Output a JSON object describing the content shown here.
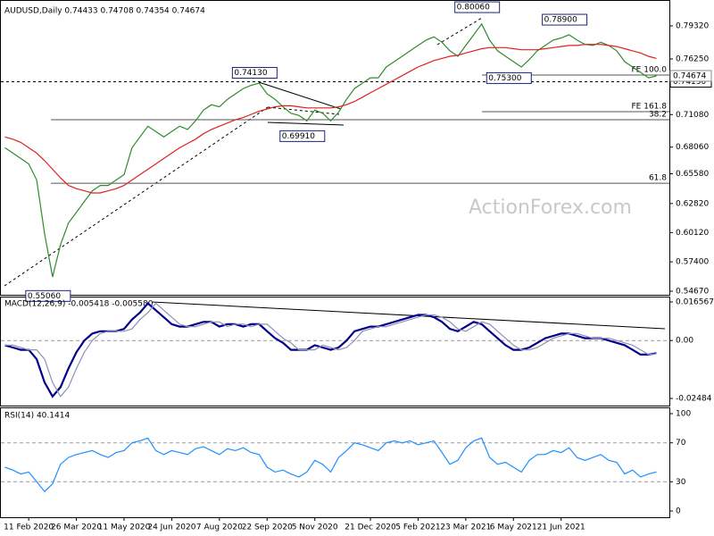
{
  "chart_data": [
    {
      "type": "line",
      "title": "AUDUSD,Daily  0.74433 0.74708 0.74354 0.74674",
      "watermark": "ActionForex.com",
      "categories": [
        null,
        null,
        null,
        "11 Feb 2020",
        null,
        null,
        null,
        null,
        null,
        "26 Mar 2020",
        null,
        null,
        null,
        null,
        null,
        "11 May 2020",
        null,
        null,
        null,
        null,
        null,
        "24 Jun 2020",
        null,
        null,
        null,
        null,
        null,
        "7 Aug 2020",
        null,
        null,
        null,
        null,
        null,
        "22 Sep 2020",
        null,
        null,
        null,
        null,
        null,
        "5 Nov 2020",
        null,
        null,
        null,
        null,
        null,
        null,
        "21 Dec 2020",
        null,
        null,
        null,
        null,
        null,
        "5 Feb 2021",
        null,
        null,
        null,
        null,
        null,
        "23 Mar 2021",
        null,
        null,
        null,
        null,
        null,
        "6 May 2021",
        null,
        null,
        null,
        null,
        null,
        "21 Jun 2021",
        null,
        null,
        null,
        null,
        null,
        null,
        null,
        null,
        null,
        null,
        null,
        null
      ],
      "series": [
        {
          "name": "AUDUSD",
          "color": "#2e8b2e",
          "values": [
            0.68,
            0.675,
            0.67,
            0.665,
            0.65,
            0.6,
            0.56,
            0.59,
            0.61,
            0.62,
            0.63,
            0.64,
            0.645,
            0.645,
            0.65,
            0.655,
            0.68,
            0.69,
            0.7,
            0.695,
            0.69,
            0.695,
            0.7,
            0.697,
            0.705,
            0.715,
            0.72,
            0.718,
            0.725,
            0.73,
            0.735,
            0.738,
            0.74,
            0.73,
            0.725,
            0.718,
            0.712,
            0.71,
            0.705,
            0.715,
            0.712,
            0.705,
            0.713,
            0.725,
            0.735,
            0.74,
            0.745,
            0.745,
            0.755,
            0.76,
            0.765,
            0.77,
            0.775,
            0.78,
            0.783,
            0.778,
            0.77,
            0.765,
            0.775,
            0.785,
            0.795,
            0.78,
            0.77,
            0.765,
            0.76,
            0.755,
            0.762,
            0.77,
            0.775,
            0.78,
            0.782,
            0.785,
            0.78,
            0.776,
            0.775,
            0.778,
            0.775,
            0.77,
            0.76,
            0.755,
            0.75,
            0.745,
            0.74674
          ]
        },
        {
          "name": "SMA",
          "color": "#e02020",
          "values": [
            0.69,
            0.688,
            0.685,
            0.68,
            0.675,
            0.668,
            0.66,
            0.652,
            0.645,
            0.642,
            0.64,
            0.638,
            0.638,
            0.64,
            0.642,
            0.645,
            0.65,
            0.655,
            0.66,
            0.665,
            0.67,
            0.675,
            0.68,
            0.684,
            0.688,
            0.693,
            0.697,
            0.7,
            0.703,
            0.706,
            0.708,
            0.711,
            0.714,
            0.716,
            0.718,
            0.719,
            0.719,
            0.718,
            0.717,
            0.717,
            0.717,
            0.717,
            0.718,
            0.72,
            0.723,
            0.727,
            0.731,
            0.735,
            0.739,
            0.743,
            0.747,
            0.751,
            0.755,
            0.758,
            0.761,
            0.763,
            0.765,
            0.766,
            0.768,
            0.77,
            0.772,
            0.773,
            0.773,
            0.773,
            0.772,
            0.771,
            0.771,
            0.771,
            0.772,
            0.773,
            0.774,
            0.775,
            0.775,
            0.776,
            0.776,
            0.776,
            0.775,
            0.774,
            0.772,
            0.77,
            0.768,
            0.765,
            0.763
          ]
        }
      ],
      "ylim": [
        0.5434,
        0.8131
      ],
      "yticks": [
        {
          "value": 0.7932,
          "label": "0.79320"
        },
        {
          "value": 0.7625,
          "label": "0.76250"
        },
        {
          "value": 0.7108,
          "label": "0.71080"
        },
        {
          "value": 0.6806,
          "label": "0.68060"
        },
        {
          "value": 0.6558,
          "label": "0.65580"
        },
        {
          "value": 0.6282,
          "label": "0.62820"
        },
        {
          "value": 0.6012,
          "label": "0.60120"
        },
        {
          "value": 0.574,
          "label": "0.57400"
        },
        {
          "value": 0.5467,
          "label": "0.54670"
        }
      ],
      "levels": [
        {
          "label": "FE 100.0",
          "value": 0.7475
        },
        {
          "label": "0.74130",
          "value": 0.7413,
          "style": "dashed"
        },
        {
          "label": "FE 161.8",
          "value": 0.7135
        },
        {
          "label": "38.2",
          "value": 0.706
        },
        {
          "label": "61.8",
          "value": 0.647
        }
      ],
      "last": {
        "value": 0.74674,
        "label": "0.74674"
      },
      "annotations": [
        {
          "label": "0.80060",
          "value": 0.8006
        },
        {
          "label": "0.78900",
          "value": 0.789
        },
        {
          "label": "0.75300",
          "value": 0.753
        },
        {
          "label": "0.74130",
          "value": 0.7413
        },
        {
          "label": "0.69910",
          "value": 0.6991
        },
        {
          "label": "0.55060",
          "value": 0.5506
        }
      ]
    },
    {
      "type": "line",
      "title": "MACD(12,26,9) -0.005418 -0.005580",
      "series": [
        {
          "name": "MACD",
          "color": "#00008b",
          "values": [
            -0.002,
            -0.003,
            -0.004,
            -0.004,
            -0.008,
            -0.018,
            -0.024,
            -0.02,
            -0.012,
            -0.005,
            0.0,
            0.003,
            0.004,
            0.004,
            0.004,
            0.005,
            0.009,
            0.012,
            0.016,
            0.013,
            0.01,
            0.007,
            0.006,
            0.006,
            0.007,
            0.008,
            0.008,
            0.006,
            0.007,
            0.007,
            0.006,
            0.007,
            0.007,
            0.004,
            0.001,
            -0.001,
            -0.004,
            -0.004,
            -0.004,
            -0.002,
            -0.003,
            -0.004,
            -0.003,
            0.0,
            0.004,
            0.005,
            0.006,
            0.006,
            0.007,
            0.008,
            0.009,
            0.01,
            0.011,
            0.011,
            0.01,
            0.008,
            0.005,
            0.004,
            0.006,
            0.008,
            0.007,
            0.004,
            0.001,
            -0.002,
            -0.004,
            -0.004,
            -0.003,
            -0.001,
            0.001,
            0.002,
            0.003,
            0.003,
            0.002,
            0.001,
            0.001,
            0.001,
            0.0,
            -0.001,
            -0.002,
            -0.004,
            -0.006,
            -0.006,
            -0.005418
          ]
        },
        {
          "name": "Signal",
          "color": "#9090b8",
          "values": [
            -0.002,
            -0.002,
            -0.003,
            -0.004,
            -0.004,
            -0.008,
            -0.018,
            -0.024,
            -0.02,
            -0.012,
            -0.005,
            0.0,
            0.003,
            0.004,
            0.004,
            0.004,
            0.005,
            0.009,
            0.012,
            0.016,
            0.013,
            0.01,
            0.007,
            0.006,
            0.006,
            0.007,
            0.008,
            0.008,
            0.006,
            0.007,
            0.007,
            0.006,
            0.007,
            0.007,
            0.004,
            0.001,
            -0.001,
            -0.004,
            -0.004,
            -0.004,
            -0.002,
            -0.003,
            -0.004,
            -0.003,
            0.0,
            0.004,
            0.005,
            0.006,
            0.006,
            0.007,
            0.008,
            0.009,
            0.01,
            0.011,
            0.011,
            0.01,
            0.008,
            0.005,
            0.004,
            0.006,
            0.008,
            0.007,
            0.004,
            0.001,
            -0.002,
            -0.004,
            -0.004,
            -0.003,
            -0.001,
            0.001,
            0.002,
            0.003,
            0.003,
            0.002,
            0.001,
            0.001,
            0.001,
            0.0,
            -0.001,
            -0.002,
            -0.004,
            -0.006,
            -0.00558
          ]
        }
      ],
      "ylim": [
        -0.02752,
        0.01848
      ],
      "yticks": [
        0.016567,
        {
          "value": 0,
          "label": "0.00"
        },
        -0.02484
      ],
      "levels": [
        0
      ]
    },
    {
      "type": "line",
      "title": "RSI(14) 40.1414",
      "series": [
        {
          "name": "RSI",
          "color": "#1e90ff",
          "values": [
            45,
            42,
            38,
            40,
            30,
            20,
            28,
            48,
            55,
            58,
            60,
            62,
            58,
            55,
            60,
            62,
            70,
            72,
            75,
            62,
            58,
            62,
            60,
            58,
            64,
            66,
            62,
            58,
            64,
            62,
            65,
            60,
            58,
            45,
            40,
            42,
            38,
            35,
            40,
            52,
            48,
            40,
            55,
            62,
            70,
            68,
            65,
            62,
            70,
            72,
            70,
            72,
            68,
            70,
            72,
            60,
            48,
            52,
            65,
            72,
            75,
            55,
            48,
            50,
            45,
            40,
            52,
            58,
            58,
            62,
            60,
            65,
            55,
            52,
            55,
            58,
            52,
            50,
            38,
            42,
            35,
            38,
            40.1414
          ]
        }
      ],
      "ylim": [
        -5.5,
        104.6
      ],
      "yticks": [
        100,
        70,
        30,
        0
      ],
      "levels": [
        70,
        30
      ]
    }
  ]
}
